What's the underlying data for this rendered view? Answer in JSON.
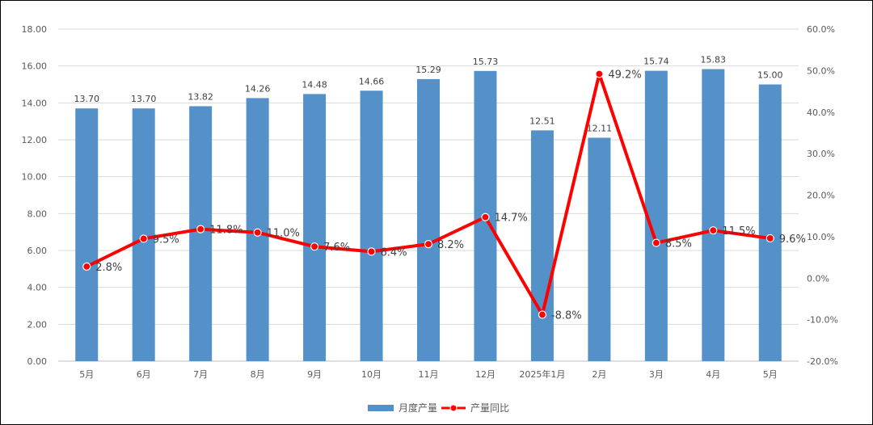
{
  "chart_data": {
    "type": "bar",
    "categories": [
      "5月",
      "6月",
      "7月",
      "8月",
      "9月",
      "10月",
      "11月",
      "12月",
      "2025年1月",
      "2月",
      "3月",
      "4月",
      "5月"
    ],
    "series": [
      {
        "name": "月度产量",
        "type": "bar",
        "axis": "left",
        "color": "#5591C9",
        "values": [
          13.7,
          13.7,
          13.82,
          14.26,
          14.48,
          14.66,
          15.29,
          15.73,
          12.51,
          12.11,
          15.74,
          15.83,
          15.0
        ],
        "labels": [
          "13.70",
          "13.70",
          "13.82",
          "14.26",
          "14.48",
          "14.66",
          "15.29",
          "15.73",
          "12.51",
          "12.11",
          "15.74",
          "15.83",
          "15.00"
        ]
      },
      {
        "name": "产量同比",
        "type": "line",
        "axis": "right",
        "color": "#FF0000",
        "values": [
          2.8,
          9.5,
          11.8,
          11.0,
          7.6,
          6.4,
          8.2,
          14.7,
          -8.8,
          49.2,
          8.5,
          11.5,
          9.6
        ],
        "labels": [
          "2.8%",
          "9.5%",
          "11.8%",
          "11.0%",
          "7.6%",
          "6.4%",
          "8.2%",
          "14.7%",
          "-8.8%",
          "49.2%",
          "8.5%",
          "11.5%",
          "9.6%"
        ]
      }
    ],
    "y_left": {
      "lim": [
        0,
        18
      ],
      "ticks": [
        "0.00",
        "2.00",
        "4.00",
        "6.00",
        "8.00",
        "10.00",
        "12.00",
        "14.00",
        "16.00",
        "18.00"
      ]
    },
    "y_right": {
      "lim": [
        -20,
        60
      ],
      "ticks": [
        "-20.0%",
        "-10.0%",
        "0.0%",
        "10.0%",
        "20.0%",
        "30.0%",
        "40.0%",
        "50.0%",
        "60.0%"
      ]
    },
    "grid": true,
    "legend": "bottom-center"
  }
}
